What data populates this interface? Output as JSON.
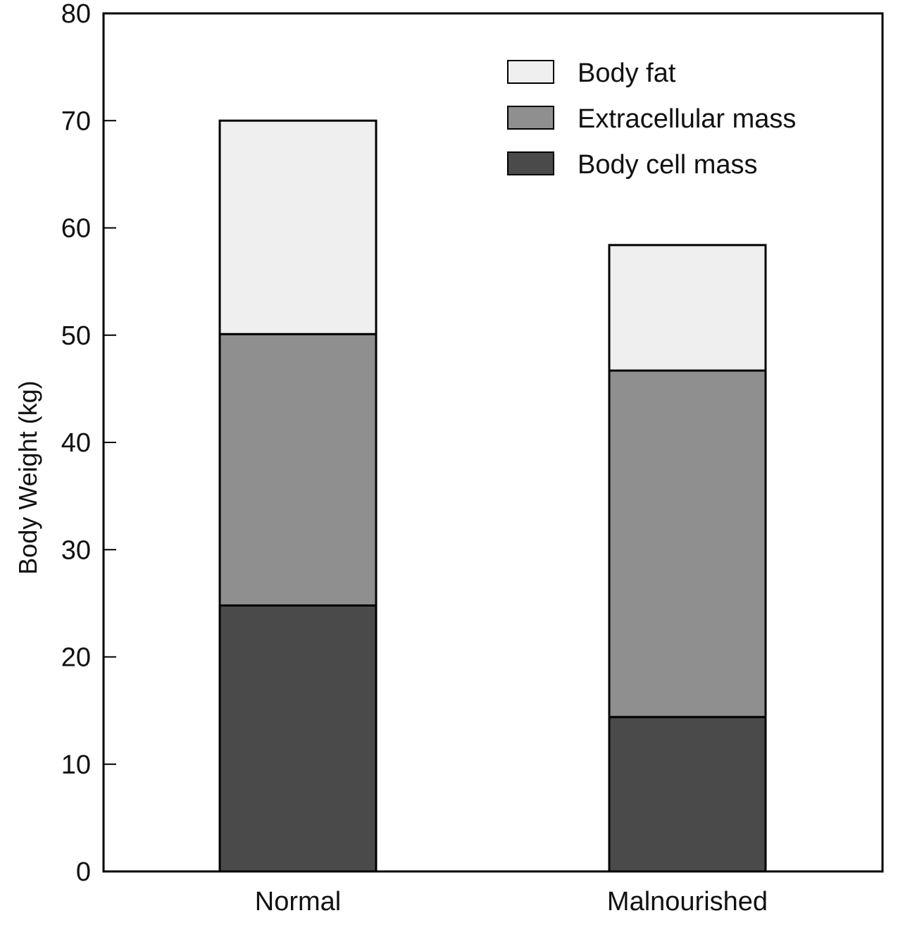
{
  "chart_data": {
    "type": "bar",
    "stacked": true,
    "categories": [
      "Normal",
      "Malnourished"
    ],
    "series": [
      {
        "name": "Body cell mass",
        "values": [
          24.8,
          14.4
        ],
        "color": "#4a4a4a"
      },
      {
        "name": "Extracellular mass",
        "values": [
          25.3,
          32.3
        ],
        "color": "#8f8f8f"
      },
      {
        "name": "Body fat",
        "values": [
          19.9,
          11.7
        ],
        "color": "#efefef"
      }
    ],
    "legend_order": [
      "Body fat",
      "Extracellular mass",
      "Body cell mass"
    ],
    "ylabel": "Body Weight (kg)",
    "xlabel": "",
    "ylim": [
      0,
      80
    ],
    "yticks": [
      0,
      10,
      20,
      30,
      40,
      50,
      60,
      70,
      80
    ],
    "grid": false,
    "legend_position": "top-right"
  }
}
